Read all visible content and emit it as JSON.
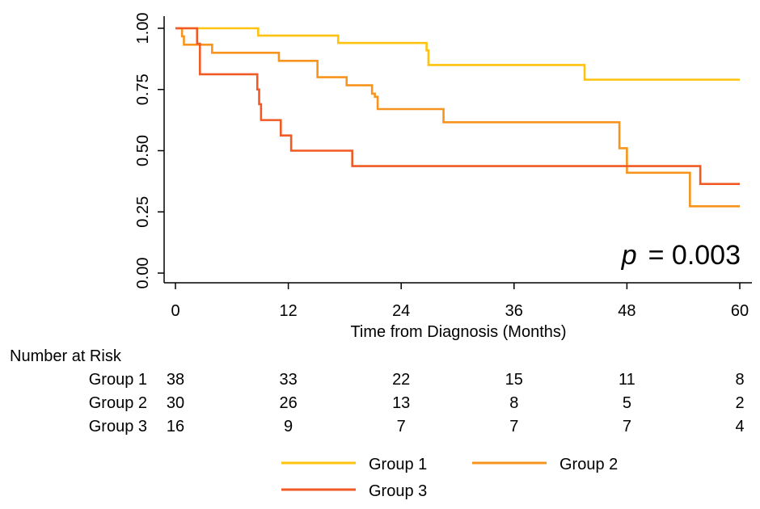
{
  "chart_data": {
    "type": "line",
    "subtype": "kaplan-meier-step",
    "xlabel": "Time from Diagnosis (Months)",
    "ylabel": "",
    "xlim": [
      0,
      60
    ],
    "ylim": [
      0,
      1
    ],
    "xticks": [
      "0",
      "12",
      "24",
      "36",
      "48",
      "60"
    ],
    "xtick_values": [
      0,
      12,
      24,
      36,
      48,
      60
    ],
    "yticks": [
      "0.00",
      "0.25",
      "0.50",
      "0.75",
      "1.00"
    ],
    "ytick_values": [
      0,
      0.25,
      0.5,
      0.75,
      1.0
    ],
    "grid": false,
    "annotation": {
      "italic": "p",
      "text": "= 0.003"
    },
    "series": [
      {
        "name": "Group 1",
        "color": "#FFC20E",
        "steps": [
          [
            0,
            1.0
          ],
          [
            8.8,
            0.97
          ],
          [
            17.3,
            0.94
          ],
          [
            26.7,
            0.91
          ],
          [
            26.9,
            0.85
          ],
          [
            43.5,
            0.79
          ],
          [
            60,
            0.79
          ]
        ]
      },
      {
        "name": "Group 2",
        "color": "#F7941D",
        "steps": [
          [
            0,
            1.0
          ],
          [
            0.7,
            0.967
          ],
          [
            0.9,
            0.933
          ],
          [
            3.9,
            0.9
          ],
          [
            11.0,
            0.867
          ],
          [
            15.1,
            0.8
          ],
          [
            18.2,
            0.767
          ],
          [
            20.9,
            0.733
          ],
          [
            21.2,
            0.72
          ],
          [
            21.5,
            0.67
          ],
          [
            28.5,
            0.616
          ],
          [
            47.2,
            0.51
          ],
          [
            48.0,
            0.41
          ],
          [
            54.7,
            0.273
          ],
          [
            60,
            0.273
          ]
        ]
      },
      {
        "name": "Group 3",
        "color": "#F15A24",
        "steps": [
          [
            0,
            1.0
          ],
          [
            2.3,
            0.937
          ],
          [
            2.6,
            0.812
          ],
          [
            8.7,
            0.75
          ],
          [
            8.9,
            0.69
          ],
          [
            9.1,
            0.625
          ],
          [
            11.2,
            0.562
          ],
          [
            12.3,
            0.5
          ],
          [
            18.8,
            0.437
          ],
          [
            55.8,
            0.364
          ],
          [
            60,
            0.364
          ]
        ]
      }
    ],
    "risk_table": {
      "title": "Number at Risk",
      "rows": [
        {
          "label": "Group 1",
          "values": [
            "38",
            "33",
            "22",
            "15",
            "11",
            "8"
          ]
        },
        {
          "label": "Group 2",
          "values": [
            "30",
            "26",
            "13",
            "8",
            "5",
            "2"
          ]
        },
        {
          "label": "Group 3",
          "values": [
            "16",
            "9",
            "7",
            "7",
            "7",
            "4"
          ]
        }
      ]
    },
    "legend": [
      "Group 1",
      "Group 2",
      "Group 3"
    ]
  }
}
